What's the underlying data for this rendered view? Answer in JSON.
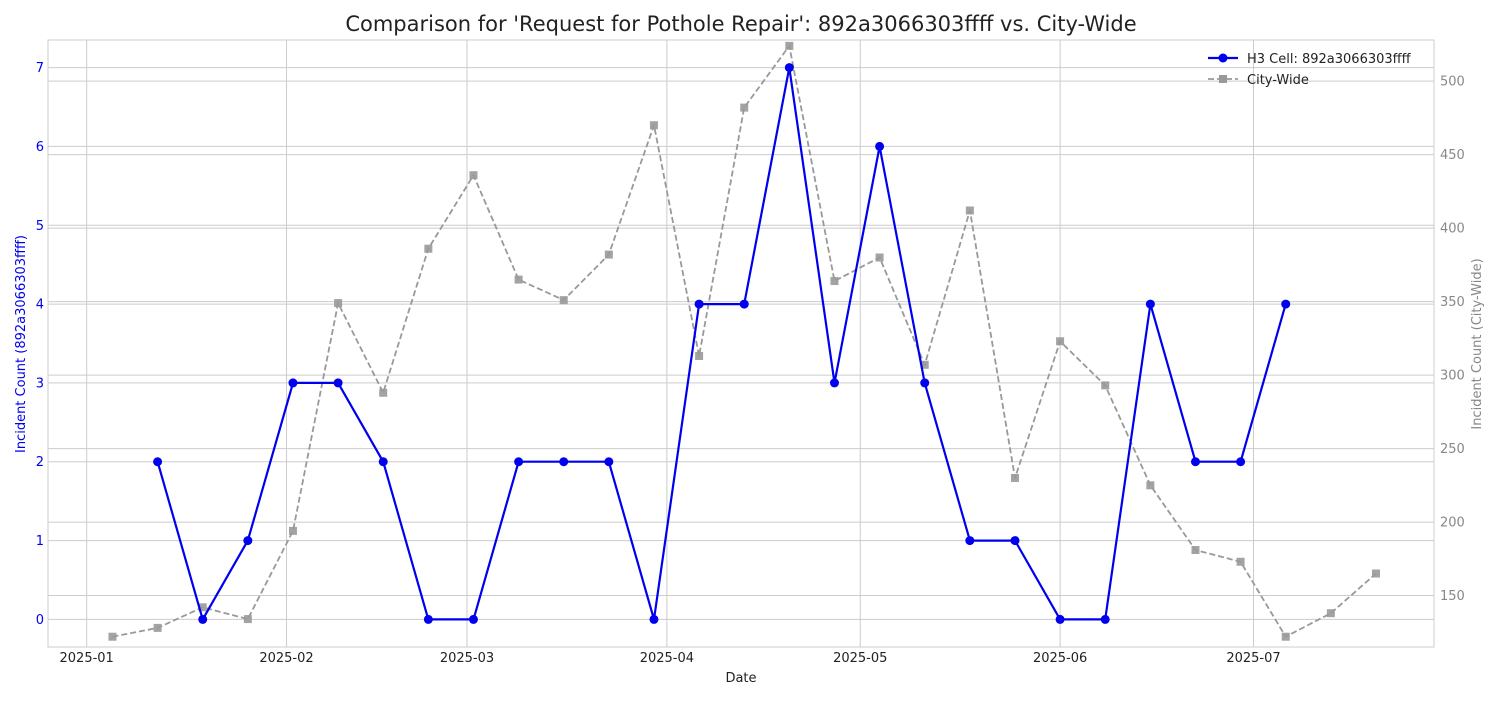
{
  "chart_data": {
    "type": "line",
    "title": "Comparison for 'Request for Pothole Repair': 892a3066303ffff vs. City-Wide",
    "xlabel": "Date",
    "ylabel_left": "Incident Count (892a3066303ffff)",
    "ylabel_right": "Incident Count (City-Wide)",
    "x_ticks": [
      "2025-01",
      "2025-02",
      "2025-03",
      "2025-04",
      "2025-05",
      "2025-06",
      "2025-07"
    ],
    "x_tick_dates": [
      "2025-01-01",
      "2025-02-01",
      "2025-03-01",
      "2025-04-01",
      "2025-05-01",
      "2025-06-01",
      "2025-07-01"
    ],
    "xlim": [
      "2024-12-26",
      "2025-07-29"
    ],
    "y_left_ticks": [
      0,
      1,
      2,
      3,
      4,
      5,
      6,
      7
    ],
    "ylim_left": [
      -0.35,
      7.35
    ],
    "y_right_ticks": [
      150,
      200,
      250,
      300,
      350,
      400,
      450,
      500
    ],
    "ylim_right": [
      115,
      528
    ],
    "grid": true,
    "legend_position": "top-right",
    "series": [
      {
        "name": "H3 Cell: 892a3066303ffff",
        "axis": "left",
        "color": "#0000ee",
        "style": "solid",
        "marker": "circle",
        "points": [
          {
            "x": "2025-01-12",
            "y": 2
          },
          {
            "x": "2025-01-19",
            "y": 0
          },
          {
            "x": "2025-01-26",
            "y": 1
          },
          {
            "x": "2025-02-02",
            "y": 3
          },
          {
            "x": "2025-02-09",
            "y": 3
          },
          {
            "x": "2025-02-16",
            "y": 2
          },
          {
            "x": "2025-02-23",
            "y": 0
          },
          {
            "x": "2025-03-02",
            "y": 0
          },
          {
            "x": "2025-03-09",
            "y": 2
          },
          {
            "x": "2025-03-16",
            "y": 2
          },
          {
            "x": "2025-03-23",
            "y": 2
          },
          {
            "x": "2025-03-30",
            "y": 0
          },
          {
            "x": "2025-04-06",
            "y": 4
          },
          {
            "x": "2025-04-13",
            "y": 4
          },
          {
            "x": "2025-04-20",
            "y": 7
          },
          {
            "x": "2025-04-27",
            "y": 3
          },
          {
            "x": "2025-05-04",
            "y": 6
          },
          {
            "x": "2025-05-11",
            "y": 3
          },
          {
            "x": "2025-05-18",
            "y": 1
          },
          {
            "x": "2025-05-25",
            "y": 1
          },
          {
            "x": "2025-06-01",
            "y": 0
          },
          {
            "x": "2025-06-08",
            "y": 0
          },
          {
            "x": "2025-06-15",
            "y": 4
          },
          {
            "x": "2025-06-22",
            "y": 2
          },
          {
            "x": "2025-06-29",
            "y": 2
          },
          {
            "x": "2025-07-06",
            "y": 4
          }
        ]
      },
      {
        "name": "City-Wide",
        "axis": "right",
        "color": "#999999",
        "style": "dashed",
        "marker": "square",
        "points": [
          {
            "x": "2025-01-05",
            "y": 122
          },
          {
            "x": "2025-01-12",
            "y": 128
          },
          {
            "x": "2025-01-19",
            "y": 142
          },
          {
            "x": "2025-01-26",
            "y": 134
          },
          {
            "x": "2025-02-02",
            "y": 194
          },
          {
            "x": "2025-02-09",
            "y": 349
          },
          {
            "x": "2025-02-16",
            "y": 288
          },
          {
            "x": "2025-02-23",
            "y": 386
          },
          {
            "x": "2025-03-02",
            "y": 436
          },
          {
            "x": "2025-03-09",
            "y": 365
          },
          {
            "x": "2025-03-16",
            "y": 351
          },
          {
            "x": "2025-03-23",
            "y": 382
          },
          {
            "x": "2025-03-30",
            "y": 470
          },
          {
            "x": "2025-04-06",
            "y": 313
          },
          {
            "x": "2025-04-13",
            "y": 482
          },
          {
            "x": "2025-04-20",
            "y": 524
          },
          {
            "x": "2025-04-27",
            "y": 364
          },
          {
            "x": "2025-05-04",
            "y": 380
          },
          {
            "x": "2025-05-11",
            "y": 307
          },
          {
            "x": "2025-05-18",
            "y": 412
          },
          {
            "x": "2025-05-25",
            "y": 230
          },
          {
            "x": "2025-06-01",
            "y": 323
          },
          {
            "x": "2025-06-08",
            "y": 293
          },
          {
            "x": "2025-06-15",
            "y": 225
          },
          {
            "x": "2025-06-22",
            "y": 181
          },
          {
            "x": "2025-06-29",
            "y": 173
          },
          {
            "x": "2025-07-06",
            "y": 122
          },
          {
            "x": "2025-07-13",
            "y": 138
          },
          {
            "x": "2025-07-20",
            "y": 165
          }
        ]
      }
    ],
    "colors": {
      "left_axis": "#0000ee",
      "right_axis": "#888888",
      "grid": "#cccccc",
      "frame": "#cccccc",
      "title": "#222222"
    }
  }
}
